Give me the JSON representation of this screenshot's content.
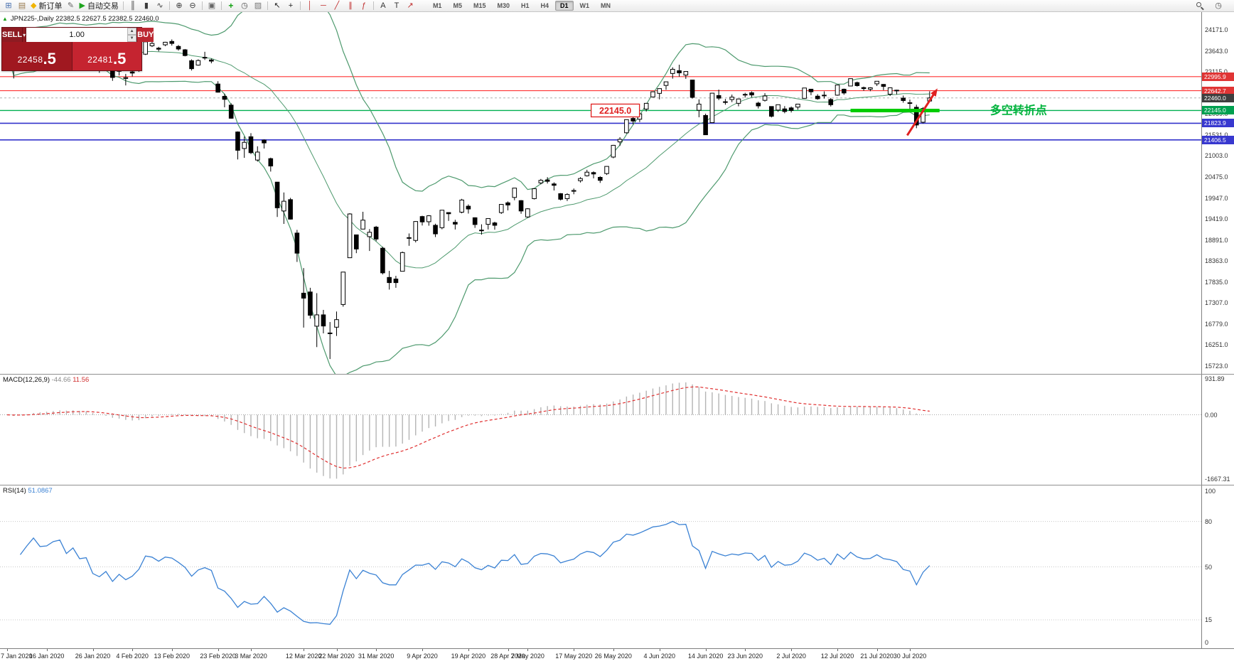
{
  "chart_header": {
    "text": "JPN225-,Daily 22382.5 22627.5 22382.5 22460.0"
  },
  "trade_panel": {
    "sell_label": "SELL",
    "buy_label": "BUY",
    "volume": "1.00",
    "sell_price_int": "22458",
    "sell_price_pips": ".5",
    "buy_price_int": "22481",
    "buy_price_pips": ".5"
  },
  "toolbar": {
    "icons_left": [
      {
        "name": "chart-window",
        "glyph": "⊞",
        "color": "#4a72b0"
      },
      {
        "name": "profiles",
        "glyph": "▤",
        "color": "#9a7b4f"
      },
      {
        "name": "new-order",
        "glyph": "◆",
        "color": "#f0b400",
        "label": "新订单"
      },
      {
        "name": "metaeditor",
        "glyph": "✎",
        "color": "#666666"
      },
      {
        "name": "autotrading",
        "glyph": "▶",
        "color": "#1fa41f",
        "label": "自动交易",
        "sep": true
      },
      {
        "name": "bar-chart",
        "glyph": "║",
        "color": "#3a3a3a"
      },
      {
        "name": "candlestick-chart",
        "glyph": "▮",
        "color": "#3a3a3a"
      },
      {
        "name": "line-chart",
        "glyph": "∿",
        "color": "#3a3a3a",
        "sep": true
      },
      {
        "name": "zoom-in",
        "glyph": "⊕",
        "color": "#3a3a3a"
      },
      {
        "name": "zoom-out",
        "glyph": "⊖",
        "color": "#3a3a3a",
        "sep": true
      },
      {
        "name": "tile-windows",
        "glyph": "▣",
        "color": "#666666",
        "sep": true
      },
      {
        "name": "indicators",
        "glyph": "+",
        "color": "#0fa00f",
        "bold": true
      },
      {
        "name": "periods",
        "glyph": "◷",
        "color": "#555555"
      },
      {
        "name": "templates",
        "glyph": "▨",
        "color": "#777777",
        "sep": true
      },
      {
        "name": "cursor",
        "glyph": "↖",
        "color": "#222222"
      },
      {
        "name": "crosshair",
        "glyph": "+",
        "color": "#222222",
        "sep": true
      },
      {
        "name": "vertical-line",
        "glyph": "│",
        "color": "#c03030"
      },
      {
        "name": "horizontal-line",
        "glyph": "─",
        "color": "#c03030"
      },
      {
        "name": "trendline",
        "glyph": "╱",
        "color": "#c03030"
      },
      {
        "name": "channel",
        "glyph": "∥",
        "color": "#c03030"
      },
      {
        "name": "fibonacci",
        "glyph": "ƒ",
        "color": "#c03030",
        "sep": true
      },
      {
        "name": "text",
        "glyph": "A",
        "color": "#333333"
      },
      {
        "name": "label",
        "glyph": "T",
        "color": "#333333"
      },
      {
        "name": "arrow-tool",
        "glyph": "↗",
        "color": "#c03030"
      }
    ],
    "timeframes": [
      "M1",
      "M5",
      "M15",
      "M30",
      "H1",
      "H4",
      "D1",
      "W1",
      "MN"
    ],
    "active_timeframe": "D1",
    "icons_right": [
      {
        "name": "search",
        "glyph": "css:magnifier"
      },
      {
        "name": "alerts",
        "glyph": "◷",
        "color": "#555555"
      }
    ]
  },
  "price_scale": {
    "gridlines": [
      "24171.0",
      "23643.0",
      "23115.0",
      "22587.0",
      "22059.0",
      "21531.0",
      "21003.0",
      "20475.0",
      "19947.0",
      "19419.0",
      "18891.0",
      "18363.0",
      "17835.0",
      "17307.0",
      "16779.0",
      "16251.0",
      "15723.0"
    ]
  },
  "hlines": [
    {
      "label": "22995.9",
      "price": 22995.9,
      "color": "#ff3333",
      "badge_bg": "#e03535",
      "width": 1.2
    },
    {
      "label": "22642.7",
      "price": 22642.7,
      "color": "#ff3333",
      "badge_bg": "#e03535",
      "width": 1.2
    },
    {
      "label": "22460.0",
      "price": 22460.0,
      "color": "#b0b0b0",
      "badge_bg": "#3f3f3f",
      "width": 1,
      "dash": true
    },
    {
      "label": "22145.0",
      "price": 22145.0,
      "color": "#00b050",
      "badge_bg": "#00a050",
      "width": 1.3
    },
    {
      "label": "21823.9",
      "price": 21823.9,
      "color": "#3333cc",
      "badge_bg": "#3838cf",
      "width": 1.6
    },
    {
      "label": "21406.5",
      "price": 21406.5,
      "color": "#3333cc",
      "badge_bg": "#3838cf",
      "width": 1.6
    }
  ],
  "annotations": {
    "price_box": {
      "text": "22145.0",
      "i": 92.3,
      "price": 22145.0,
      "color": "#e02020"
    },
    "support_segment": {
      "i1": 128,
      "i2": 141.5,
      "price": 22145.0,
      "color": "#00cc00",
      "width": 5
    },
    "arrow": {
      "i1": 136.6,
      "p1": 21520,
      "i2": 141.2,
      "p2": 22700,
      "color": "#e02020",
      "width": 3
    },
    "turning_point_label": {
      "text": "多空转折点",
      "i": 153.5,
      "price": 22145.0,
      "color": "#00b33c",
      "size": 16
    }
  },
  "macd_panel": {
    "name": "MACD(12,26,9)",
    "value_main": "-44.66",
    "value_signal": "11.56",
    "scale_labels": [
      "931.89",
      "0.00",
      "-1667.31"
    ],
    "histogram_color": "#b4b4b4",
    "signal_color": "#e03030",
    "fast": 12,
    "slow": 26,
    "signal": 9
  },
  "rsi_panel": {
    "name": "RSI(14)",
    "value": "51.0867",
    "scale_labels": [
      "100",
      "80",
      "50",
      "15",
      "0"
    ],
    "levels": [
      80,
      50,
      15
    ],
    "period": 14,
    "color": "#3b82d4"
  },
  "chart_data": {
    "type": "candlestick",
    "symbol": "JPN225",
    "period": "Daily",
    "colors": {
      "bull": "#ffffff",
      "bear": "#000000",
      "outline": "#000000"
    },
    "bollinger": {
      "period": 20,
      "deviation": 2,
      "color": "#4e9a6e"
    },
    "candles": [
      [
        23320,
        23577,
        23299,
        23570
      ],
      [
        23300,
        23320,
        22950,
        23205
      ],
      [
        23330,
        23740,
        23320,
        23710
      ],
      [
        23780,
        23900,
        23745,
        23850
      ],
      [
        23880,
        24040,
        23860,
        24020
      ],
      [
        23950,
        23955,
        23840,
        23915
      ],
      [
        23890,
        24010,
        23850,
        23930
      ],
      [
        24020,
        24115,
        23985,
        24040
      ],
      [
        24010,
        24090,
        23985,
        24085
      ],
      [
        24010,
        24012,
        23820,
        23865
      ],
      [
        23960,
        24045,
        23940,
        24030
      ],
      [
        23860,
        23905,
        23755,
        23795
      ],
      [
        23845,
        23910,
        23765,
        23825
      ],
      [
        23640,
        23655,
        23335,
        23345
      ],
      [
        23320,
        23355,
        23090,
        23215
      ],
      [
        23325,
        23430,
        23270,
        23380
      ],
      [
        23205,
        23245,
        22890,
        22975
      ],
      [
        23130,
        23270,
        23025,
        23205
      ],
      [
        22950,
        23065,
        22775,
        22970
      ],
      [
        23115,
        23150,
        23000,
        23085
      ],
      [
        23180,
        23340,
        23115,
        23320
      ],
      [
        23560,
        23875,
        23540,
        23870
      ],
      [
        23770,
        23885,
        23740,
        23830
      ],
      [
        23710,
        23745,
        23630,
        23685
      ],
      [
        23795,
        23870,
        23760,
        23860
      ],
      [
        23880,
        23930,
        23775,
        23830
      ],
      [
        23755,
        23790,
        23650,
        23690
      ],
      [
        23670,
        23690,
        23505,
        23525
      ],
      [
        23395,
        23430,
        23150,
        23195
      ],
      [
        23285,
        23430,
        23270,
        23400
      ],
      [
        23480,
        23620,
        23415,
        23480
      ],
      [
        23415,
        23450,
        23330,
        23385
      ],
      [
        22810,
        22880,
        22595,
        22605
      ],
      [
        22500,
        22565,
        22225,
        22425
      ],
      [
        22280,
        22325,
        21940,
        21950
      ],
      [
        21605,
        21620,
        20915,
        21145
      ],
      [
        21190,
        21490,
        20955,
        21345
      ],
      [
        21485,
        21575,
        21050,
        21085
      ],
      [
        20900,
        21245,
        20860,
        21100
      ],
      [
        21400,
        21420,
        21190,
        21330
      ],
      [
        20935,
        20960,
        20610,
        20750
      ],
      [
        20345,
        20350,
        19470,
        19700
      ],
      [
        19620,
        20085,
        19295,
        19865
      ],
      [
        19905,
        19950,
        19405,
        19415
      ],
      [
        19065,
        19145,
        18340,
        18560
      ],
      [
        17555,
        18185,
        16690,
        17430
      ],
      [
        17585,
        17690,
        16915,
        17000
      ],
      [
        16725,
        17555,
        16200,
        17010
      ],
      [
        17010,
        17135,
        16545,
        16730
      ],
      [
        16550,
        16830,
        15900,
        16555
      ],
      [
        16700,
        17095,
        16480,
        16890
      ],
      [
        17270,
        18090,
        17215,
        18085
      ],
      [
        18445,
        19565,
        18445,
        19545
      ],
      [
        19020,
        19025,
        18560,
        18665
      ],
      [
        19165,
        19600,
        19165,
        19390
      ],
      [
        18975,
        19165,
        18615,
        19085
      ],
      [
        19215,
        19245,
        18860,
        18915
      ],
      [
        18685,
        18720,
        18025,
        18065
      ],
      [
        17950,
        18115,
        17645,
        17820
      ],
      [
        17910,
        17990,
        17690,
        17820
      ],
      [
        18105,
        18600,
        18105,
        18575
      ],
      [
        18935,
        19055,
        18745,
        18950
      ],
      [
        18880,
        19365,
        18830,
        19355
      ],
      [
        19480,
        19500,
        19255,
        19345
      ],
      [
        19350,
        19515,
        19250,
        19500
      ],
      [
        19260,
        19300,
        18965,
        19045
      ],
      [
        19200,
        19640,
        19160,
        19640
      ],
      [
        19580,
        19590,
        19370,
        19550
      ],
      [
        19335,
        19400,
        19155,
        19290
      ],
      [
        19590,
        19925,
        19560,
        19895
      ],
      [
        19740,
        19785,
        19555,
        19670
      ],
      [
        19450,
        19460,
        19195,
        19280
      ],
      [
        19130,
        19285,
        19025,
        19140
      ],
      [
        19285,
        19435,
        19155,
        19430
      ],
      [
        19320,
        19350,
        19150,
        19260
      ],
      [
        19580,
        19795,
        19545,
        19785
      ],
      [
        19825,
        19860,
        19635,
        19770
      ],
      [
        19960,
        20200,
        19890,
        20195
      ],
      [
        19880,
        19895,
        19550,
        19620
      ],
      [
        19470,
        19690,
        19450,
        19675
      ],
      [
        19930,
        20185,
        19910,
        20180
      ],
      [
        20325,
        20425,
        20290,
        20390
      ],
      [
        20400,
        20470,
        20310,
        20365
      ],
      [
        20300,
        20340,
        20135,
        20265
      ],
      [
        20055,
        20070,
        19885,
        19915
      ],
      [
        19930,
        20065,
        19870,
        20035
      ],
      [
        20115,
        20185,
        20040,
        20135
      ],
      [
        20380,
        20470,
        20335,
        20435
      ],
      [
        20505,
        20655,
        20485,
        20595
      ],
      [
        20585,
        20615,
        20440,
        20550
      ],
      [
        20465,
        20495,
        20325,
        20390
      ],
      [
        20560,
        20745,
        20525,
        20740
      ],
      [
        20975,
        21280,
        20945,
        21270
      ],
      [
        21355,
        21475,
        21255,
        21420
      ],
      [
        21585,
        21920,
        21565,
        21915
      ],
      [
        21945,
        22045,
        21800,
        21880
      ],
      [
        21925,
        22070,
        21855,
        22060
      ],
      [
        22180,
        22330,
        22120,
        22325
      ],
      [
        22485,
        22625,
        22475,
        22615
      ],
      [
        22575,
        22700,
        22425,
        22695
      ],
      [
        22775,
        22870,
        22665,
        22865
      ],
      [
        23075,
        23230,
        22945,
        23180
      ],
      [
        23145,
        23295,
        22995,
        23090
      ],
      [
        23035,
        23130,
        22940,
        23125
      ],
      [
        22910,
        22915,
        22445,
        22475
      ],
      [
        22150,
        22425,
        21975,
        22305
      ],
      [
        22020,
        22065,
        21530,
        21535
      ],
      [
        21840,
        22585,
        21835,
        22580
      ],
      [
        22520,
        22670,
        22405,
        22455
      ],
      [
        22365,
        22435,
        22290,
        22355
      ],
      [
        22420,
        22545,
        22355,
        22480
      ],
      [
        22325,
        22440,
        22250,
        22435
      ],
      [
        22550,
        22590,
        22470,
        22550
      ],
      [
        22590,
        22625,
        22480,
        22535
      ],
      [
        22330,
        22365,
        22195,
        22260
      ],
      [
        22400,
        22580,
        22370,
        22510
      ],
      [
        22245,
        22250,
        21970,
        22000
      ],
      [
        22155,
        22290,
        22110,
        22290
      ],
      [
        22185,
        22255,
        22075,
        22120
      ],
      [
        22210,
        22245,
        22095,
        22145
      ],
      [
        22230,
        22310,
        22165,
        22305
      ],
      [
        22450,
        22715,
        22445,
        22710
      ],
      [
        22680,
        22685,
        22530,
        22615
      ],
      [
        22505,
        22555,
        22415,
        22440
      ],
      [
        22530,
        22625,
        22445,
        22530
      ],
      [
        22420,
        22460,
        22245,
        22290
      ],
      [
        22530,
        22790,
        22515,
        22785
      ],
      [
        22680,
        22695,
        22540,
        22585
      ],
      [
        22760,
        22950,
        22755,
        22945
      ],
      [
        22845,
        22870,
        22745,
        22770
      ],
      [
        22720,
        22745,
        22640,
        22695
      ],
      [
        22680,
        22730,
        22630,
        22715
      ],
      [
        22815,
        22885,
        22760,
        22880
      ],
      [
        22800,
        22810,
        22655,
        22750
      ],
      [
        22555,
        22720,
        22510,
        22715
      ],
      [
        22640,
        22665,
        22550,
        22655
      ],
      [
        22455,
        22520,
        22340,
        22395
      ],
      [
        22330,
        22420,
        22175,
        22340
      ],
      [
        22225,
        22290,
        21700,
        21780
      ],
      [
        21850,
        22230,
        21820,
        22195
      ],
      [
        22382.5,
        22627.5,
        22382.5,
        22460.0
      ]
    ],
    "x_axis_labels": [
      {
        "text": "7 Jan 2020",
        "i": 0
      },
      {
        "text": "16 Jan 2020",
        "i": 6
      },
      {
        "text": "26 Jan 2020",
        "i": 13
      },
      {
        "text": "4 Feb 2020",
        "i": 19
      },
      {
        "text": "13 Feb 2020",
        "i": 25
      },
      {
        "text": "23 Feb 2020",
        "i": 32
      },
      {
        "text": "3 Mar 2020",
        "i": 37
      },
      {
        "text": "12 Mar 2020",
        "i": 45
      },
      {
        "text": "22 Mar 2020",
        "i": 50
      },
      {
        "text": "31 Mar 2020",
        "i": 56
      },
      {
        "text": "9 Apr 2020",
        "i": 63
      },
      {
        "text": "19 Apr 2020",
        "i": 70
      },
      {
        "text": "28 Apr 2020",
        "i": 76
      },
      {
        "text": "7 May 2020",
        "i": 79
      },
      {
        "text": "17 May 2020",
        "i": 86
      },
      {
        "text": "26 May 2020",
        "i": 92
      },
      {
        "text": "4 Jun 2020",
        "i": 99
      },
      {
        "text": "14 Jun 2020",
        "i": 106
      },
      {
        "text": "23 Jun 2020",
        "i": 112
      },
      {
        "text": "2 Jul 2020",
        "i": 119
      },
      {
        "text": "12 Jul 2020",
        "i": 126
      },
      {
        "text": "21 Jul 2020",
        "i": 132
      },
      {
        "text": "30 Jul 2020",
        "i": 137
      }
    ]
  }
}
